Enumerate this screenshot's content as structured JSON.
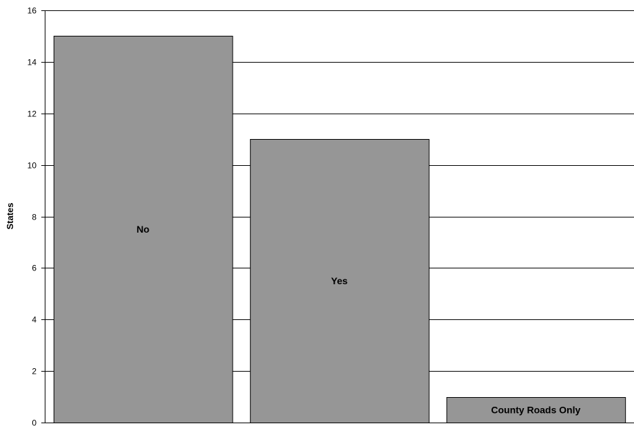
{
  "chart_data": {
    "type": "bar",
    "categories": [
      "No",
      "Yes",
      "County Roads Only"
    ],
    "values": [
      15,
      11,
      1
    ],
    "title": "",
    "xlabel": "",
    "ylabel": "States",
    "ylim": [
      0,
      16
    ],
    "yticks": [
      0,
      2,
      4,
      6,
      8,
      10,
      12,
      14,
      16
    ],
    "grid": true,
    "legend": "none",
    "bar_labels_inside": true,
    "colors": {
      "bar": "#969696",
      "bar_edge": "#000000",
      "grid": "#000000"
    }
  }
}
